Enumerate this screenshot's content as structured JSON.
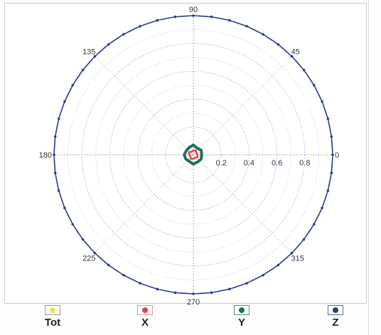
{
  "chart_data": {
    "type": "polar",
    "angle_ticks": [
      "0",
      "45",
      "90",
      "135",
      "180",
      "225",
      "270",
      "315"
    ],
    "angle_tick_values": [
      0,
      45,
      90,
      135,
      180,
      225,
      270,
      315
    ],
    "radial_ticks": [
      "0.2",
      "0.4",
      "0.6",
      "0.8"
    ],
    "radial_tick_values": [
      0.2,
      0.4,
      0.6,
      0.8
    ],
    "rlim": [
      0,
      1
    ],
    "grid": true,
    "legend_position": "bottom",
    "series": [
      {
        "name": "Tot",
        "color": "#f2e24a",
        "r": [],
        "theta": []
      },
      {
        "name": "X",
        "color": "#e8404a",
        "r": [
          0.03,
          0.025,
          0.035,
          0.03,
          0.025,
          0.035,
          0.03,
          0.025,
          0.035,
          0.03,
          0.025,
          0.035
        ],
        "theta": [
          0,
          30,
          60,
          90,
          120,
          150,
          180,
          210,
          240,
          270,
          300,
          330
        ]
      },
      {
        "name": "Y",
        "color": "#1f6f5a",
        "r": [
          0.06,
          0.065,
          0.055,
          0.07,
          0.06,
          0.058,
          0.066,
          0.062,
          0.056,
          0.068,
          0.06,
          0.064
        ],
        "theta": [
          0,
          30,
          60,
          90,
          120,
          150,
          180,
          210,
          240,
          270,
          300,
          330
        ]
      },
      {
        "name": "Z",
        "color": "#2c3a8c",
        "r": [
          1,
          1,
          1,
          1,
          1,
          1,
          1,
          1,
          1,
          1,
          1,
          1,
          1,
          1,
          1,
          1,
          1,
          1,
          1,
          1,
          1,
          1,
          1,
          1,
          1,
          1,
          1,
          1,
          1,
          1,
          1,
          1,
          1,
          1,
          1,
          1,
          1,
          1,
          1,
          1,
          1,
          1,
          1,
          1,
          1,
          1,
          1,
          1
        ],
        "theta": [
          0,
          7.5,
          15,
          22.5,
          30,
          37.5,
          45,
          52.5,
          60,
          67.5,
          75,
          82.5,
          90,
          97.5,
          105,
          112.5,
          120,
          127.5,
          135,
          142.5,
          150,
          157.5,
          165,
          172.5,
          180,
          187.5,
          195,
          202.5,
          210,
          217.5,
          225,
          232.5,
          240,
          247.5,
          255,
          262.5,
          270,
          277.5,
          285,
          292.5,
          300,
          307.5,
          315,
          322.5,
          330,
          337.5,
          345,
          352.5
        ]
      }
    ]
  },
  "legend": [
    {
      "label": "Tot",
      "color": "#f2e24a"
    },
    {
      "label": "X",
      "color": "#e8404a"
    },
    {
      "label": "Y",
      "color": "#1f6f5a"
    },
    {
      "label": "Z",
      "color": "#2c3a8c"
    }
  ]
}
